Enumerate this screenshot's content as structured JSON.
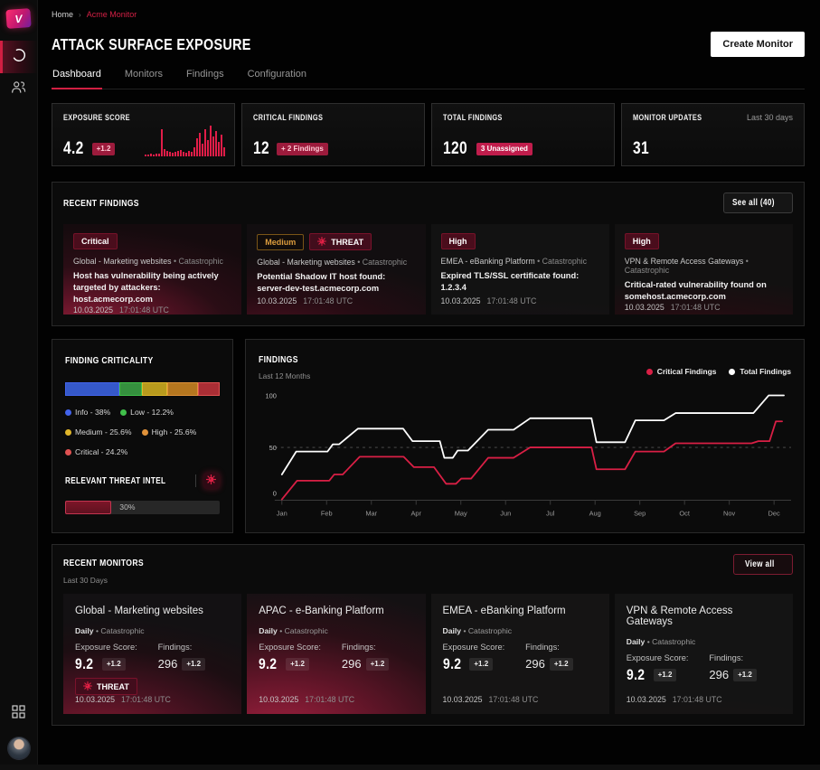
{
  "brand": {
    "logo_letter": "V"
  },
  "breadcrumb": {
    "home": "Home",
    "separator": "›",
    "current": "Acme Monitor"
  },
  "header": {
    "title": "ATTACK SURFACE EXPOSURE",
    "create_button": "Create Monitor"
  },
  "tabs": [
    {
      "label": "Dashboard",
      "active": true
    },
    {
      "label": "Monitors",
      "active": false
    },
    {
      "label": "Findings",
      "active": false
    },
    {
      "label": "Configuration",
      "active": false
    }
  ],
  "stats": [
    {
      "title": "EXPOSURE SCORE",
      "value": "4.2",
      "badge": "+1.2",
      "badge_style": "red",
      "sparkline": [
        2,
        2,
        3,
        2,
        3,
        3,
        30,
        8,
        6,
        5,
        4,
        5,
        6,
        7,
        5,
        4,
        6,
        5,
        10,
        20,
        26,
        14,
        30,
        18,
        34,
        22,
        28,
        16,
        24,
        10
      ]
    },
    {
      "title": "CRITICAL FINDINGS",
      "value": "12",
      "badge": "+ 2 Findings",
      "badge_style": "red"
    },
    {
      "title": "TOTAL FINDINGS",
      "value": "120",
      "badge": "3 Unassigned",
      "badge_style": "red-bright"
    },
    {
      "title": "MONITOR UPDATES",
      "value": "31",
      "note": "Last 30 days"
    }
  ],
  "recent_findings": {
    "title": "RECENT FINDINGS",
    "see_all_label": "See all (40)",
    "cards": [
      {
        "severity": "Critical",
        "severity_style": "critical",
        "threat": false,
        "scope": "Global - Marketing websites",
        "impact": "Catastrophic",
        "text": "Host has vulnerability being actively targeted by attackers: host.acmecorp.com",
        "date": "10.03.2025",
        "time": "17:01:48 UTC"
      },
      {
        "severity": "Medium",
        "severity_style": "medium",
        "threat": true,
        "threat_label": "THREAT",
        "scope": "Global - Marketing websites",
        "impact": "Catastrophic",
        "text": "Potential Shadow IT host found: server-dev-test.acmecorp.com",
        "date": "10.03.2025",
        "time": "17:01:48 UTC"
      },
      {
        "severity": "High",
        "severity_style": "critical",
        "threat": false,
        "scope": "EMEA - eBanking Platform",
        "impact": "Catastrophic",
        "text": "Expired TLS/SSL certificate found: 1.2.3.4",
        "date": "10.03.2025",
        "time": "17:01:48 UTC"
      },
      {
        "severity": "High",
        "severity_style": "critical",
        "threat": false,
        "scope": "VPN & Remote Access Gateways",
        "impact": "Catastrophic",
        "text": "Critical-rated vulnerability found on somehost.acmecorp.com",
        "date": "10.03.2025",
        "time": "17:01:48 UTC"
      }
    ]
  },
  "criticality": {
    "title": "FINDING CRITICALITY",
    "segments": [
      {
        "label": "Info",
        "pct_label": "38%",
        "value": 38,
        "width": 35,
        "color": "#3558c9",
        "dot": "#4263eb"
      },
      {
        "label": "Low",
        "pct_label": "12.2%",
        "value": 12.2,
        "width": 15,
        "color": "#35903e",
        "dot": "#40bf4a"
      },
      {
        "label": "Medium",
        "pct_label": "25.6%",
        "value": 25.6,
        "width": 16,
        "color": "#b89a1d",
        "dot": "#e0b62a"
      },
      {
        "label": "High",
        "pct_label": "25.6%",
        "value": 25.6,
        "width": 20,
        "color": "#b5761f",
        "dot": "#e0923a"
      },
      {
        "label": "Critical",
        "pct_label": "24.2%",
        "value": 24.2,
        "width": 14,
        "color": "#aa2e35",
        "dot": "#e05252"
      }
    ],
    "threat_intel": {
      "title": "RELEVANT THREAT INTEL",
      "progress_value": 30,
      "progress_label": "30%"
    }
  },
  "chart_data": {
    "type": "line",
    "title": "FINDINGS",
    "subtitle": "Last 12 Months",
    "x_labels": [
      "Jan",
      "Feb",
      "Mar",
      "Apr",
      "May",
      "Jun",
      "Jul",
      "Aug",
      "Sep",
      "Oct",
      "Nov",
      "Dec"
    ],
    "ylim": [
      0,
      100
    ],
    "y_ticks": [
      0,
      50,
      100
    ],
    "grid_y": 50,
    "legend_position": "top-right",
    "series": [
      {
        "name": "Total Findings",
        "color": "#ffffff",
        "points": [
          [
            0,
            24
          ],
          [
            0.32,
            46
          ],
          [
            1.02,
            46
          ],
          [
            1.14,
            53
          ],
          [
            1.28,
            53
          ],
          [
            1.7,
            68
          ],
          [
            2.71,
            68
          ],
          [
            2.92,
            56
          ],
          [
            3.53,
            56
          ],
          [
            3.63,
            40
          ],
          [
            3.82,
            40
          ],
          [
            3.93,
            47
          ],
          [
            4.16,
            47
          ],
          [
            4.61,
            67
          ],
          [
            5.18,
            67
          ],
          [
            5.55,
            78
          ],
          [
            6.92,
            78
          ],
          [
            7.03,
            55
          ],
          [
            7.67,
            55
          ],
          [
            7.9,
            76
          ],
          [
            8.54,
            76
          ],
          [
            8.8,
            83
          ],
          [
            10.54,
            83
          ],
          [
            10.88,
            100
          ],
          [
            11.22,
            100
          ]
        ]
      },
      {
        "name": "Critical Findings",
        "color": "#d91f45",
        "points": [
          [
            0,
            0
          ],
          [
            0.34,
            18
          ],
          [
            1.06,
            18
          ],
          [
            1.17,
            24
          ],
          [
            1.36,
            24
          ],
          [
            1.74,
            41
          ],
          [
            2.72,
            41
          ],
          [
            2.95,
            31
          ],
          [
            3.4,
            31
          ],
          [
            3.67,
            15
          ],
          [
            3.89,
            15
          ],
          [
            4.01,
            20
          ],
          [
            4.23,
            20
          ],
          [
            4.61,
            40
          ],
          [
            5.18,
            40
          ],
          [
            5.55,
            50
          ],
          [
            6.92,
            50
          ],
          [
            7.03,
            29
          ],
          [
            7.67,
            29
          ],
          [
            7.9,
            46
          ],
          [
            8.54,
            46
          ],
          [
            8.8,
            54
          ],
          [
            10.5,
            54
          ],
          [
            10.65,
            56
          ],
          [
            10.9,
            56
          ],
          [
            11.04,
            75
          ],
          [
            11.18,
            75
          ]
        ]
      }
    ],
    "legend_order": [
      "Critical Findings",
      "Total Findings"
    ]
  },
  "recent_monitors": {
    "title": "RECENT MONITORS",
    "subtitle": "Last 30 Days",
    "view_all_label": "View all",
    "exposure_label": "Exposure Score:",
    "findings_label": "Findings:",
    "cards": [
      {
        "name": "Global - Marketing websites",
        "frequency": "Daily",
        "impact": "Catastrophic",
        "exposure_score": "9.2",
        "exposure_delta": "+1.2",
        "findings": "296",
        "findings_delta": "+1.2",
        "threat": true,
        "threat_label": "THREAT",
        "date": "10.03.2025",
        "time": "17:01:48 UTC"
      },
      {
        "name": "APAC - e-Banking Platform",
        "frequency": "Daily",
        "impact": "Catastrophic",
        "exposure_score": "9.2",
        "exposure_delta": "+1.2",
        "findings": "296",
        "findings_delta": "+1.2",
        "threat": false,
        "date": "10.03.2025",
        "time": "17:01:48 UTC"
      },
      {
        "name": "EMEA - eBanking Platform",
        "frequency": "Daily",
        "impact": "Catastrophic",
        "exposure_score": "9.2",
        "exposure_delta": "+1.2",
        "findings": "296",
        "findings_delta": "+1.2",
        "threat": false,
        "date": "10.03.2025",
        "time": "17:01:48 UTC"
      },
      {
        "name": "VPN & Remote Access Gateways",
        "frequency": "Daily",
        "impact": "Catastrophic",
        "exposure_score": "9.2",
        "exposure_delta": "+1.2",
        "findings": "296",
        "findings_delta": "+1.2",
        "threat": false,
        "date": "10.03.2025",
        "time": "17:01:48 UTC"
      }
    ]
  }
}
